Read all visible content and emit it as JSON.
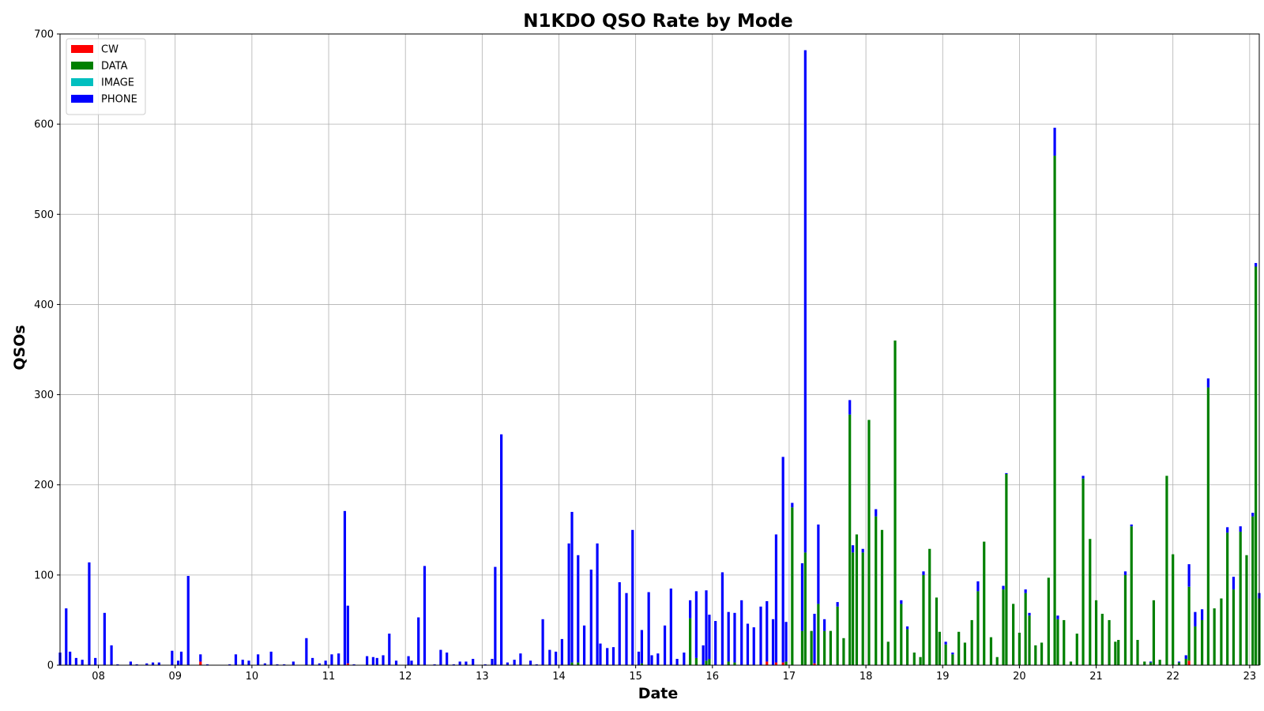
{
  "chart_data": {
    "type": "bar",
    "stacked": true,
    "title": "N1KDO QSO Rate by Mode",
    "xlabel": "Date",
    "ylabel": "QSOs",
    "ylim": [
      0,
      700
    ],
    "yticks": [
      0,
      100,
      200,
      300,
      400,
      500,
      600,
      700
    ],
    "xlim_days": [
      7.5,
      23.125
    ],
    "xtick_days": [
      8,
      9,
      10,
      11,
      12,
      13,
      14,
      15,
      16,
      17,
      18,
      19,
      20,
      21,
      22,
      23
    ],
    "xtick_labels": [
      "08",
      "09",
      "10",
      "11",
      "12",
      "13",
      "14",
      "15",
      "16",
      "17",
      "18",
      "19",
      "20",
      "21",
      "22",
      "23"
    ],
    "grid": true,
    "legend_position": "upper-left",
    "series": [
      {
        "name": "CW",
        "color": "#ff0000",
        "values": [
          [
            9.33,
            4
          ],
          [
            11.25,
            2
          ],
          [
            16.71,
            4
          ],
          [
            16.83,
            3
          ],
          [
            16.92,
            3
          ],
          [
            17.33,
            2
          ],
          [
            22.21,
            5
          ]
        ]
      },
      {
        "name": "DATA",
        "color": "#008000",
        "values": [
          [
            14.17,
            3
          ],
          [
            14.25,
            3
          ],
          [
            15.08,
            2
          ],
          [
            15.71,
            52
          ],
          [
            15.79,
            8
          ],
          [
            15.92,
            5
          ],
          [
            15.96,
            7
          ],
          [
            16.21,
            4
          ],
          [
            16.29,
            3
          ],
          [
            16.96,
            4
          ],
          [
            17.04,
            175
          ],
          [
            17.17,
            38
          ],
          [
            17.21,
            125
          ],
          [
            17.29,
            38
          ],
          [
            17.38,
            68
          ],
          [
            17.46,
            38
          ],
          [
            17.54,
            38
          ],
          [
            17.63,
            65
          ],
          [
            17.71,
            30
          ],
          [
            17.79,
            278
          ],
          [
            17.83,
            125
          ],
          [
            17.88,
            145
          ],
          [
            17.96,
            125
          ],
          [
            18.04,
            272
          ],
          [
            18.13,
            165
          ],
          [
            18.21,
            150
          ],
          [
            18.29,
            26
          ],
          [
            18.38,
            360
          ],
          [
            18.46,
            68
          ],
          [
            18.54,
            40
          ],
          [
            18.63,
            14
          ],
          [
            18.71,
            9
          ],
          [
            18.75,
            100
          ],
          [
            18.83,
            129
          ],
          [
            18.92,
            75
          ],
          [
            18.96,
            37
          ],
          [
            19.04,
            23
          ],
          [
            19.13,
            12
          ],
          [
            19.21,
            37
          ],
          [
            19.29,
            25
          ],
          [
            19.38,
            50
          ],
          [
            19.46,
            82
          ],
          [
            19.54,
            137
          ],
          [
            19.63,
            31
          ],
          [
            19.71,
            9
          ],
          [
            19.79,
            84
          ],
          [
            19.83,
            212
          ],
          [
            19.92,
            68
          ],
          [
            20.0,
            36
          ],
          [
            20.08,
            80
          ],
          [
            20.13,
            55
          ],
          [
            20.21,
            22
          ],
          [
            20.29,
            25
          ],
          [
            20.38,
            97
          ],
          [
            20.46,
            565
          ],
          [
            20.5,
            51
          ],
          [
            20.58,
            50
          ],
          [
            20.67,
            4
          ],
          [
            20.75,
            35
          ],
          [
            20.83,
            207
          ],
          [
            20.92,
            140
          ],
          [
            21.0,
            72
          ],
          [
            21.08,
            57
          ],
          [
            21.17,
            50
          ],
          [
            21.25,
            26
          ],
          [
            21.29,
            28
          ],
          [
            21.38,
            100
          ],
          [
            21.46,
            154
          ],
          [
            21.54,
            28
          ],
          [
            21.63,
            4
          ],
          [
            21.71,
            3
          ],
          [
            21.75,
            72
          ],
          [
            21.83,
            6
          ],
          [
            21.92,
            210
          ],
          [
            22.0,
            123
          ],
          [
            22.08,
            3
          ],
          [
            22.17,
            7
          ],
          [
            22.21,
            82
          ],
          [
            22.29,
            43
          ],
          [
            22.38,
            50
          ],
          [
            22.46,
            308
          ],
          [
            22.54,
            63
          ],
          [
            22.63,
            74
          ],
          [
            22.71,
            147
          ],
          [
            22.79,
            84
          ],
          [
            22.88,
            148
          ],
          [
            22.96,
            122
          ],
          [
            23.04,
            165
          ],
          [
            23.08,
            442
          ],
          [
            23.125,
            74
          ]
        ]
      },
      {
        "name": "IMAGE",
        "color": "#00bfbf",
        "values": []
      },
      {
        "name": "PHONE",
        "color": "#0000ff",
        "values": [
          [
            7.5,
            14
          ],
          [
            7.58,
            63
          ],
          [
            7.63,
            15
          ],
          [
            7.71,
            8
          ],
          [
            7.79,
            6
          ],
          [
            7.88,
            114
          ],
          [
            7.96,
            8
          ],
          [
            8.08,
            58
          ],
          [
            8.17,
            22
          ],
          [
            8.25,
            1
          ],
          [
            8.42,
            4
          ],
          [
            8.5,
            1
          ],
          [
            8.63,
            2
          ],
          [
            8.71,
            3
          ],
          [
            8.79,
            3
          ],
          [
            8.96,
            16
          ],
          [
            9.04,
            5
          ],
          [
            9.08,
            15
          ],
          [
            9.17,
            99
          ],
          [
            9.33,
            8
          ],
          [
            9.42,
            1
          ],
          [
            9.71,
            1
          ],
          [
            9.79,
            12
          ],
          [
            9.88,
            6
          ],
          [
            9.96,
            5
          ],
          [
            10.08,
            12
          ],
          [
            10.17,
            2
          ],
          [
            10.25,
            15
          ],
          [
            10.33,
            1
          ],
          [
            10.42,
            1
          ],
          [
            10.54,
            4
          ],
          [
            10.71,
            30
          ],
          [
            10.79,
            8
          ],
          [
            10.88,
            2
          ],
          [
            10.96,
            5
          ],
          [
            11.04,
            12
          ],
          [
            11.13,
            13
          ],
          [
            11.21,
            171
          ],
          [
            11.25,
            64
          ],
          [
            11.33,
            1
          ],
          [
            11.5,
            10
          ],
          [
            11.58,
            9
          ],
          [
            11.63,
            8
          ],
          [
            11.71,
            11
          ],
          [
            11.79,
            35
          ],
          [
            11.88,
            5
          ],
          [
            12.04,
            10
          ],
          [
            12.08,
            5
          ],
          [
            12.17,
            53
          ],
          [
            12.25,
            110
          ],
          [
            12.38,
            1
          ],
          [
            12.46,
            17
          ],
          [
            12.54,
            14
          ],
          [
            12.63,
            1
          ],
          [
            12.71,
            4
          ],
          [
            12.79,
            4
          ],
          [
            12.88,
            7
          ],
          [
            13.04,
            1
          ],
          [
            13.13,
            7
          ],
          [
            13.17,
            109
          ],
          [
            13.25,
            256
          ],
          [
            13.33,
            3
          ],
          [
            13.42,
            6
          ],
          [
            13.5,
            13
          ],
          [
            13.63,
            5
          ],
          [
            13.71,
            1
          ],
          [
            13.79,
            51
          ],
          [
            13.88,
            17
          ],
          [
            13.96,
            15
          ],
          [
            14.04,
            29
          ],
          [
            14.13,
            135
          ],
          [
            14.17,
            167
          ],
          [
            14.25,
            119
          ],
          [
            14.33,
            44
          ],
          [
            14.42,
            106
          ],
          [
            14.5,
            135
          ],
          [
            14.54,
            24
          ],
          [
            14.63,
            19
          ],
          [
            14.71,
            20
          ],
          [
            14.79,
            92
          ],
          [
            14.88,
            80
          ],
          [
            14.96,
            150
          ],
          [
            15.04,
            15
          ],
          [
            15.08,
            37
          ],
          [
            15.17,
            81
          ],
          [
            15.21,
            11
          ],
          [
            15.29,
            13
          ],
          [
            15.38,
            44
          ],
          [
            15.46,
            85
          ],
          [
            15.54,
            7
          ],
          [
            15.63,
            14
          ],
          [
            15.71,
            20
          ],
          [
            15.79,
            74
          ],
          [
            15.88,
            22
          ],
          [
            15.92,
            78
          ],
          [
            15.96,
            49
          ],
          [
            16.04,
            49
          ],
          [
            16.13,
            103
          ],
          [
            16.21,
            55
          ],
          [
            16.29,
            55
          ],
          [
            16.38,
            72
          ],
          [
            16.46,
            46
          ],
          [
            16.54,
            42
          ],
          [
            16.63,
            65
          ],
          [
            16.71,
            67
          ],
          [
            16.79,
            51
          ],
          [
            16.83,
            142
          ],
          [
            16.92,
            228
          ],
          [
            16.96,
            44
          ],
          [
            17.04,
            5
          ],
          [
            17.17,
            75
          ],
          [
            17.21,
            557
          ],
          [
            17.33,
            55
          ],
          [
            17.38,
            88
          ],
          [
            17.46,
            13
          ],
          [
            17.63,
            5
          ],
          [
            17.79,
            16
          ],
          [
            17.83,
            8
          ],
          [
            17.96,
            4
          ],
          [
            18.13,
            8
          ],
          [
            18.46,
            4
          ],
          [
            18.54,
            3
          ],
          [
            18.75,
            4
          ],
          [
            19.04,
            3
          ],
          [
            19.13,
            2
          ],
          [
            19.46,
            11
          ],
          [
            19.79,
            4
          ],
          [
            19.83,
            1
          ],
          [
            20.08,
            4
          ],
          [
            20.13,
            3
          ],
          [
            20.46,
            31
          ],
          [
            20.5,
            4
          ],
          [
            20.83,
            3
          ],
          [
            21.38,
            4
          ],
          [
            21.46,
            2
          ],
          [
            21.71,
            1
          ],
          [
            22.08,
            1
          ],
          [
            22.17,
            4
          ],
          [
            22.21,
            25
          ],
          [
            22.29,
            16
          ],
          [
            22.38,
            12
          ],
          [
            22.46,
            10
          ],
          [
            22.71,
            6
          ],
          [
            22.79,
            14
          ],
          [
            22.88,
            6
          ],
          [
            23.04,
            4
          ],
          [
            23.08,
            4
          ],
          [
            23.125,
            6
          ]
        ]
      }
    ]
  }
}
